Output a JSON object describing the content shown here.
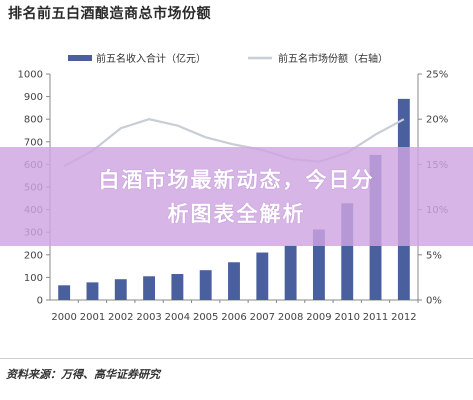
{
  "page": {
    "title": "排名前五白酒酿造商总市场份额",
    "overlay_lines": [
      "白酒市场最新动态，今日分",
      "析图表全解析"
    ],
    "source": "资料来源：万得、高华证券研究"
  },
  "chart_data": {
    "type": "bar",
    "title": "排名前五白酒酿造商总市场份额",
    "categories": [
      "2000",
      "2001",
      "2002",
      "2003",
      "2004",
      "2005",
      "2006",
      "2007",
      "2008",
      "2009",
      "2010",
      "2011",
      "2012"
    ],
    "series": [
      {
        "name": "前五名收入合计（亿元）",
        "type": "bar",
        "axis": "left",
        "color": "#4a5f9e",
        "values": [
          65,
          78,
          92,
          105,
          115,
          132,
          167,
          210,
          240,
          312,
          428,
          642,
          890
        ]
      },
      {
        "name": "前五名市场份额（右轴）",
        "type": "line",
        "axis": "right",
        "color": "#c8cdd6",
        "values": [
          14.8,
          16.5,
          19.0,
          20.0,
          19.3,
          18.0,
          17.2,
          16.6,
          15.6,
          15.3,
          16.3,
          18.3,
          20.0
        ]
      }
    ],
    "y_left": {
      "range": [
        0,
        1000
      ],
      "ticks": [
        "0",
        "100",
        "200",
        "300",
        "400",
        "500",
        "600",
        "700",
        "800",
        "900",
        "1000"
      ]
    },
    "y_right": {
      "range": [
        0,
        25
      ],
      "ticks": [
        "0%",
        "5%",
        "10%",
        "15%",
        "20%",
        "25%"
      ]
    },
    "legend_position": "top",
    "grid": false
  }
}
